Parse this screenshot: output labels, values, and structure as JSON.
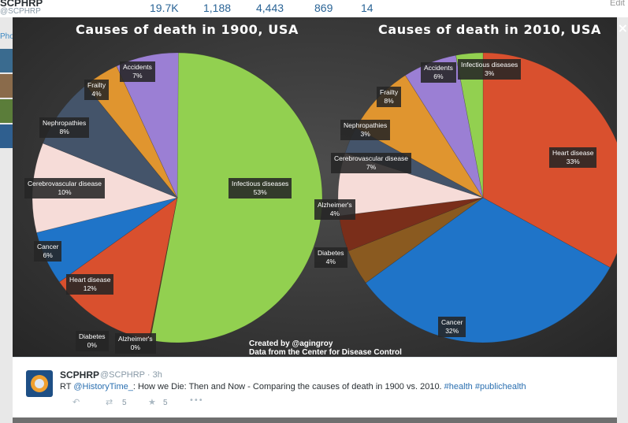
{
  "profile": {
    "name": "SCPHRP",
    "handle": "@SCPHRP",
    "stats": [
      "19.7K",
      "1,188",
      "4,443",
      "869",
      "14"
    ],
    "edit_label": "Edit",
    "photos_label": "Phot"
  },
  "close_glyph": "×",
  "chart_data": [
    {
      "type": "pie",
      "title": "Causes of death in 1900, USA",
      "slices": [
        {
          "label": "Infectious diseases",
          "value": 53,
          "display": "53%",
          "color": "#92d050"
        },
        {
          "label": "Alzheimer's",
          "value": 0,
          "display": "0%",
          "color": "#7a3a1a"
        },
        {
          "label": "Diabetes",
          "value": 0,
          "display": "0%",
          "color": "#8a5a20"
        },
        {
          "label": "Heart disease",
          "value": 12,
          "display": "12%",
          "color": "#d9502e"
        },
        {
          "label": "Cancer",
          "value": 6,
          "display": "6%",
          "color": "#1f74c8"
        },
        {
          "label": "Cerebrovascular disease",
          "value": 10,
          "display": "10%",
          "color": "#f6dcd8"
        },
        {
          "label": "Nephropathies",
          "value": 8,
          "display": "8%",
          "color": "#44546a"
        },
        {
          "label": "Frailty",
          "value": 4,
          "display": "4%",
          "color": "#e0952f"
        },
        {
          "label": "Accidents",
          "value": 7,
          "display": "7%",
          "color": "#9b7fd4"
        }
      ]
    },
    {
      "type": "pie",
      "title": "Causes of death in 2010, USA",
      "slices": [
        {
          "label": "Heart disease",
          "value": 33,
          "display": "33%",
          "color": "#d9502e"
        },
        {
          "label": "Cancer",
          "value": 32,
          "display": "32%",
          "color": "#1f74c8"
        },
        {
          "label": "Diabetes",
          "value": 4,
          "display": "4%",
          "color": "#8a5a20"
        },
        {
          "label": "Alzheimer's",
          "value": 4,
          "display": "4%",
          "color": "#7a2e1a"
        },
        {
          "label": "Cerebrovascular disease",
          "value": 7,
          "display": "7%",
          "color": "#f6dcd8"
        },
        {
          "label": "Nephropathies",
          "value": 3,
          "display": "3%",
          "color": "#44546a"
        },
        {
          "label": "Frailty",
          "value": 8,
          "display": "8%",
          "color": "#e0952f"
        },
        {
          "label": "Accidents",
          "value": 6,
          "display": "6%",
          "color": "#9b7fd4"
        },
        {
          "label": "Infectious diseases",
          "value": 3,
          "display": "3%",
          "color": "#92d050"
        }
      ]
    }
  ],
  "credit": {
    "line1": "Created by @agingroy",
    "line2": "Data from the Center for Disease Control"
  },
  "tweet": {
    "name": "SCPHRP",
    "meta": "@SCPHRP · 3h",
    "text_rt": "RT ",
    "mention": "@HistoryTime_",
    "text_body": ": How we Die: Then and Now - Comparing the causes of death in 1900 vs. 2010.  ",
    "hashtag1": "#health",
    "hashtag2": "#publichealth",
    "retweets": "5",
    "favorites": "5",
    "more": "•••"
  }
}
